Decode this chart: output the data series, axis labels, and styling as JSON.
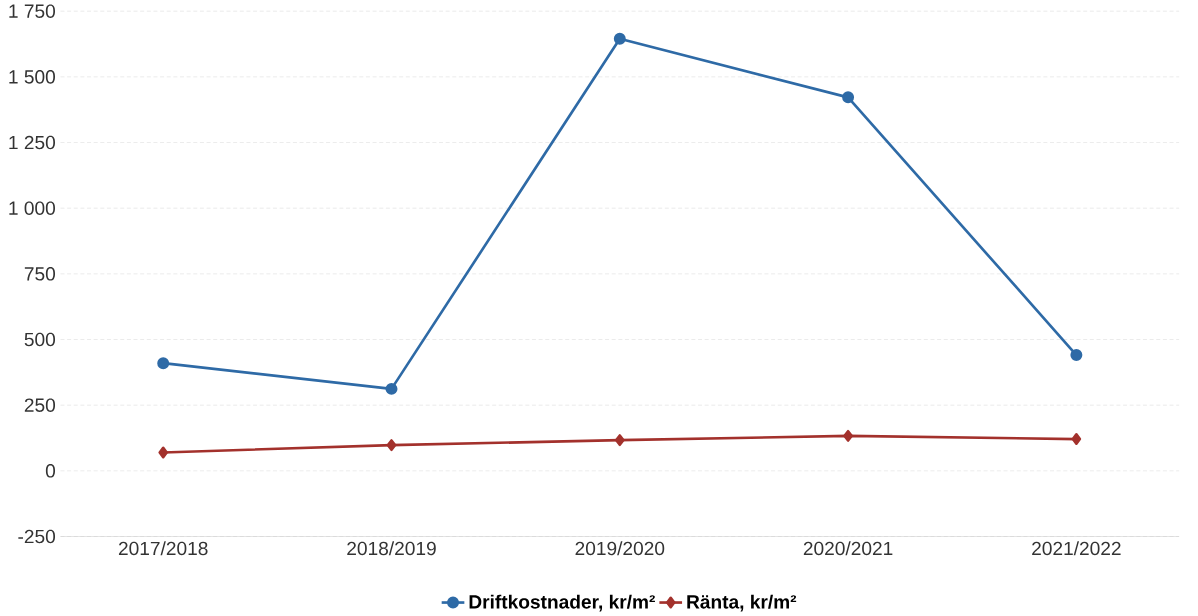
{
  "chart_data": {
    "type": "line",
    "categories": [
      "2017/2018",
      "2018/2019",
      "2019/2020",
      "2020/2021",
      "2021/2022"
    ],
    "series": [
      {
        "name": "Driftkostnader, kr/m²",
        "color": "#2e6aa6",
        "marker": "circle",
        "values": [
          410,
          312,
          1645,
          1422,
          441
        ]
      },
      {
        "name": "Ränta, kr/m²",
        "color": "#a3312c",
        "marker": "diamond",
        "values": [
          70,
          98,
          117,
          133,
          121
        ]
      }
    ],
    "ylim": [
      -250,
      1750
    ],
    "yticks": [
      -250,
      0,
      250,
      500,
      750,
      {
        "value": 1000,
        "label": "1 000"
      },
      {
        "value": 1250,
        "label": "1 250"
      },
      {
        "value": 1500,
        "label": "1 500"
      },
      {
        "value": 1750,
        "label": "1 750"
      }
    ],
    "grid": "y",
    "legend": "bottom",
    "line_style": "solid"
  }
}
